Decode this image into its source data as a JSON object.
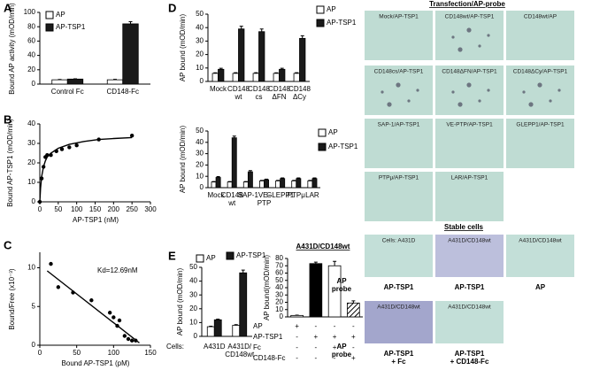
{
  "chart_data": [
    {
      "type": "bar",
      "panel": "A",
      "ylabel": "Bound AP activity (mOD/min)",
      "categories": [
        "Control Fc",
        "CD148-Fc"
      ],
      "series": [
        {
          "name": "AP",
          "color": "#ffffff",
          "values": [
            6,
            6
          ],
          "errors": [
            0.5,
            0.6
          ]
        },
        {
          "name": "AP-TSP1",
          "color": "#1a1a1a",
          "values": [
            7,
            84
          ],
          "errors": [
            0.4,
            3
          ]
        }
      ],
      "ylim": [
        0,
        100
      ],
      "yticks": [
        0,
        20,
        40,
        60,
        80,
        100
      ]
    },
    {
      "type": "scatter",
      "panel": "B",
      "xlabel": "AP-TSP1 (nM)",
      "ylabel": "Bound AP-TSP1 (mOD/min)",
      "x": [
        0,
        5,
        10,
        15,
        20,
        30,
        45,
        60,
        80,
        100,
        160,
        250
      ],
      "values": [
        0,
        12,
        18,
        23,
        24,
        24,
        26,
        27,
        28,
        29,
        32,
        34
      ],
      "fit_x": [
        0,
        2,
        5,
        10,
        15,
        20,
        30,
        50,
        80,
        120,
        160,
        200,
        250
      ],
      "fit_values": [
        0,
        7,
        13,
        18,
        21,
        23,
        25,
        27.5,
        29.5,
        31,
        32,
        32.5,
        33
      ],
      "xlim": [
        0,
        300
      ],
      "xticks": [
        0,
        50,
        100,
        150,
        200,
        250,
        300
      ],
      "ylim": [
        0,
        40
      ],
      "yticks": [
        0,
        10,
        20,
        30,
        40
      ]
    },
    {
      "type": "scatter",
      "panel": "C",
      "xlabel": "Bound AP-TSP1 (pM)",
      "ylabel": "Bound/Free (x10⁻³)",
      "annotation": "Kd=12.69nM",
      "x": [
        15,
        25,
        45,
        70,
        95,
        100,
        105,
        108,
        115,
        120,
        125,
        130
      ],
      "values": [
        10.5,
        7.5,
        6.8,
        5.8,
        4.2,
        3.6,
        2.5,
        3.2,
        1.2,
        0.8,
        0.6,
        0.6
      ],
      "fit_x": [
        10,
        135
      ],
      "fit_values": [
        9.6,
        0.3
      ],
      "xlim": [
        0,
        150
      ],
      "xticks": [
        0,
        50,
        100,
        150
      ],
      "ylim": [
        0,
        12
      ],
      "yticks": [
        0,
        5,
        10
      ]
    },
    {
      "type": "bar",
      "panel": "D",
      "ylabel": "AP bound (mOD/min)",
      "categories": [
        "Mock",
        "CD148\nwt",
        "CD148\ncs",
        "CD148\nΔFN",
        "CD148\nΔCy"
      ],
      "series": [
        {
          "name": "AP",
          "color": "#ffffff",
          "values": [
            6,
            6,
            6,
            6,
            6
          ],
          "errors": [
            0.4,
            0.5,
            0.5,
            0.4,
            0.5
          ]
        },
        {
          "name": "AP-TSP1",
          "color": "#1a1a1a",
          "values": [
            9,
            39,
            37,
            9,
            32
          ],
          "errors": [
            0.8,
            2,
            2,
            0.8,
            2
          ]
        }
      ],
      "ylim": [
        0,
        50
      ],
      "yticks": [
        0,
        10,
        20,
        30,
        40,
        50
      ]
    },
    {
      "type": "bar",
      "ylabel": "AP bound (mOD/min)",
      "categories": [
        "Mock",
        "CD148\nwt",
        "SAP-1",
        "VE-\nPTP",
        "GLEPP1",
        "PTPμ",
        "LAR"
      ],
      "series": [
        {
          "name": "AP",
          "color": "#ffffff",
          "values": [
            5,
            5,
            5,
            6,
            6,
            6,
            6
          ],
          "errors": [
            0.4,
            0.4,
            0.4,
            0.4,
            0.4,
            0.4,
            0.4
          ]
        },
        {
          "name": "AP-TSP1",
          "color": "#1a1a1a",
          "values": [
            9,
            44,
            14,
            7,
            8,
            8,
            8
          ],
          "errors": [
            0.8,
            1.5,
            1,
            0.5,
            0.6,
            0.6,
            0.6
          ]
        }
      ],
      "ylim": [
        0,
        50
      ],
      "yticks": [
        0,
        10,
        20,
        30,
        40,
        50
      ]
    },
    {
      "type": "bar",
      "panel": "E",
      "ylabel": "AP bound (mOD/min)",
      "cells_label": "Cells:",
      "categories": [
        "A431D",
        "A431D/\nCD148wt"
      ],
      "series": [
        {
          "name": "AP",
          "color": "#ffffff",
          "values": [
            7,
            8
          ],
          "errors": [
            0.4,
            0.5
          ]
        },
        {
          "name": "AP-TSP1",
          "color": "#1a1a1a",
          "values": [
            12,
            46
          ],
          "errors": [
            0.5,
            2
          ]
        }
      ],
      "ylim": [
        0,
        50
      ],
      "yticks": [
        0,
        10,
        20,
        30,
        40,
        50
      ]
    },
    {
      "type": "bar",
      "title": "A431D/CD148wt",
      "ylabel": "AP bound(mOD/min)",
      "values": [
        2,
        73,
        70,
        19
      ],
      "errors": [
        0.5,
        2,
        6,
        3
      ],
      "colors": [
        "#ffffff",
        "#000000",
        "#ffffff",
        "#ffffff"
      ],
      "hatch": [
        false,
        false,
        false,
        true
      ],
      "ylim": [
        0,
        80
      ],
      "yticks": [
        0,
        10,
        20,
        30,
        40,
        50,
        60,
        70,
        80
      ],
      "conditions": [
        {
          "label": "AP",
          "marks": [
            "+",
            "-",
            "-",
            "-"
          ]
        },
        {
          "label": "AP-TSP1",
          "marks": [
            "-",
            "+",
            "+",
            "+"
          ]
        },
        {
          "label": "Fc",
          "marks": [
            "-",
            "-",
            "+",
            "-"
          ]
        },
        {
          "label": "CD148-Fc",
          "marks": [
            "-",
            "-",
            "-",
            "+"
          ]
        }
      ]
    }
  ],
  "transfection": {
    "title": "Transfection/AP-probe",
    "tiles": [
      "Mock/AP-TSP1",
      "CD148wt/AP-TSP1",
      "CD148wt/AP",
      "CD148cs/AP-TSP1",
      "CD148ΔFN/AP-TSP1",
      "CD148ΔCy/AP-TSP1",
      "SAP-1/AP-TSP1",
      "VE-PTP/AP-TSP1",
      "GLEPP1/AP-TSP1",
      "PTPμ/AP-TSP1",
      "LAR/AP-TSP1"
    ]
  },
  "stable": {
    "title": "Stable cells",
    "tiles": [
      "Cells: A431D",
      "A431D/CD148wt",
      "A431D/CD148wt",
      "A431D/CD148wt",
      "A431D/CD148wt"
    ],
    "captions": [
      "AP-TSP1",
      "AP-TSP1",
      "AP",
      "AP-TSP1\n+ Fc",
      "AP-TSP1\n+ CD148-Fc"
    ],
    "row_labels": [
      "AP\nprobe",
      "AP\nprobe"
    ]
  }
}
